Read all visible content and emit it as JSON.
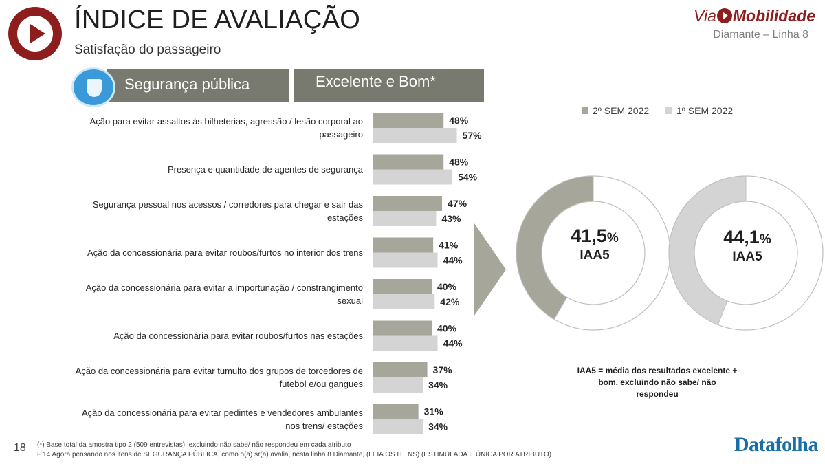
{
  "header": {
    "title": "ÍNDICE DE AVALIAÇÃO",
    "subtitle": "Satisfação do passageiro",
    "brand_via": "Via",
    "brand_mobilidade": "Mobilidade",
    "line": "Diamante – Linha 8"
  },
  "section": {
    "topic": "Segurança pública",
    "metric": "Excelente e Bom*"
  },
  "colors": {
    "series_2022_2": "#a6a69b",
    "series_2022_1": "#d4d4d4",
    "donut_ring_fill_1": "#a6a69b",
    "donut_ring_fill_2": "#d4d4d4",
    "arrow": "#a6a69b",
    "brand": "#8e1e1e"
  },
  "chart_data": [
    {
      "type": "bar",
      "orientation": "horizontal",
      "categories": [
        "Ação para evitar assaltos às bilheterias, agressão / lesão corporal ao passageiro",
        "Presença e quantidade de agentes de segurança",
        "Segurança pessoal nos acessos / corredores para chegar e sair das estações",
        "Ação da concessionária para evitar roubos/furtos no interior dos trens",
        "Ação da concessionária para evitar a importunação / constrangimento sexual",
        "Ação da concessionária para evitar roubos/furtos nas estações",
        "Ação da concessionária para evitar tumulto dos grupos de torcedores de futebol e/ou gangues",
        "Ação da concessionária para evitar pedintes e vendedores ambulantes nos trens/ estações"
      ],
      "category_lines": [
        [
          "Ação para evitar assaltos às bilheterias, agressão / lesão corporal ao",
          "passageiro"
        ],
        [
          "Presença e quantidade de agentes de segurança"
        ],
        [
          "Segurança pessoal nos acessos / corredores para chegar e sair das",
          "estações"
        ],
        [
          "Ação da concessionária para evitar roubos/furtos no interior dos trens"
        ],
        [
          "Ação da concessionária para evitar a importunação / constrangimento",
          "sexual"
        ],
        [
          "Ação da concessionária para evitar roubos/furtos nas estações"
        ],
        [
          "Ação da concessionária para evitar tumulto dos grupos de torcedores de",
          "futebol e/ou gangues"
        ],
        [
          "Ação da concessionária para evitar pedintes e vendedores ambulantes",
          "nos trens/ estações"
        ]
      ],
      "series": [
        {
          "name": "2º SEM 2022",
          "values": [
            48,
            48,
            47,
            41,
            40,
            40,
            37,
            31
          ],
          "labels": [
            "48%",
            "48%",
            "47%",
            "41%",
            "40%",
            "40%",
            "37%",
            "31%"
          ]
        },
        {
          "name": "1º SEM 2022",
          "values": [
            57,
            54,
            43,
            44,
            42,
            44,
            34,
            34
          ],
          "labels": [
            "57%",
            "54%",
            "43%",
            "44%",
            "42%",
            "44%",
            "34%",
            "34%"
          ]
        }
      ],
      "unit": "%",
      "legend": "top-right",
      "grid": false
    },
    {
      "type": "pie",
      "variant": "donut",
      "series_name": "2º SEM 2022",
      "value": 41.5,
      "value_label": "41,5",
      "value_suffix": "%",
      "label": "IAA5"
    },
    {
      "type": "pie",
      "variant": "donut",
      "series_name": "1º SEM 2022",
      "value": 44.1,
      "value_label": "44,1",
      "value_suffix": "%",
      "label": "IAA5"
    }
  ],
  "note": "IAA5 = média dos resultados excelente + bom, excluindo não sabe/ não respondeu",
  "footer": {
    "page": "18",
    "base": "(*) Base total da amostra tipo 2 (509 entrevistas), excluindo não sabe/ não respondeu em cada atributo",
    "question": "P.14 Agora pensando nos itens de SEGURANÇA PÚBLICA, como o(a) sr(a) avalia, nesta linha 8 Diamante, (LEIA OS ITENS) (ESTIMULADA E ÚNICA POR ATRIBUTO)",
    "source_brand": "Datafolha"
  }
}
